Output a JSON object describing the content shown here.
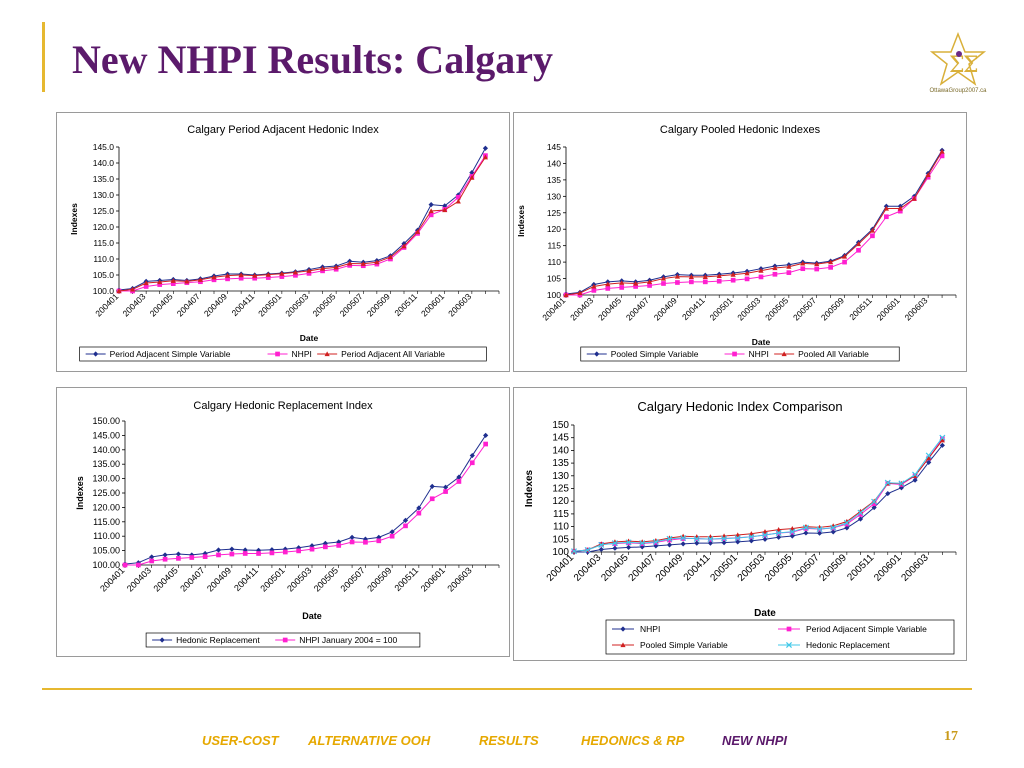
{
  "slide": {
    "title": "New NHPI Results: Calgary",
    "page_number": "17",
    "logo": {
      "text": "OttawaGroup2007.ca",
      "icon": "sigma-star-logo"
    },
    "footer": [
      {
        "label": "USER-COST",
        "color": "#e6a800"
      },
      {
        "label": "ALTERNATIVE OOH",
        "color": "#e6a800"
      },
      {
        "label": "RESULTS",
        "color": "#e6a800"
      },
      {
        "label": "HEDONICS & RP",
        "color": "#e6a800"
      },
      {
        "label": "NEW NHPI",
        "color": "#5b1a6b"
      }
    ]
  },
  "chart_data": [
    {
      "type": "line",
      "title": "Calgary Period Adjacent Hedonic Index",
      "xlabel": "Date",
      "ylabel": "Indexes",
      "ylim": [
        100,
        145
      ],
      "yticks": [
        "100.0",
        "105.0",
        "110.0",
        "115.0",
        "120.0",
        "125.0",
        "130.0",
        "135.0",
        "140.0",
        "145.0"
      ],
      "x": [
        "200401",
        "200402",
        "200403",
        "200404",
        "200405",
        "200406",
        "200407",
        "200408",
        "200409",
        "200410",
        "200411",
        "200412",
        "200501",
        "200502",
        "200503",
        "200504",
        "200505",
        "200506",
        "200507",
        "200508",
        "200509",
        "200510",
        "200511",
        "200512",
        "200601",
        "200602",
        "200603",
        "200604",
        "200605"
      ],
      "xtick_labels": [
        "200401",
        "200403",
        "200405",
        "200407",
        "200409",
        "200411",
        "200501",
        "200503",
        "200505",
        "200507",
        "200509",
        "200511",
        "200601",
        "200603"
      ],
      "legend": "bottom",
      "series": [
        {
          "name": "Period Adjacent Simple Variable",
          "color": "#1f2f8f",
          "marker": "diamond",
          "values": [
            100.3,
            100.8,
            103.0,
            103.3,
            103.6,
            103.3,
            103.8,
            104.7,
            105.3,
            105.3,
            105.0,
            105.3,
            105.6,
            106.0,
            106.7,
            107.5,
            107.8,
            109.3,
            109.0,
            109.5,
            111.0,
            114.8,
            119.0,
            127.0,
            126.6,
            130.0,
            137.0,
            144.6,
            null
          ]
        },
        {
          "name": "NHPI",
          "color": "#ff20d0",
          "marker": "square",
          "values": [
            100.0,
            100.0,
            101.4,
            102.0,
            102.3,
            102.6,
            102.9,
            103.5,
            103.8,
            104.0,
            104.0,
            104.2,
            104.5,
            104.9,
            105.5,
            106.3,
            106.8,
            108.0,
            107.9,
            108.4,
            110.0,
            113.6,
            118.0,
            123.8,
            125.5,
            129.3,
            135.8,
            142.3,
            null
          ]
        },
        {
          "name": "Period Adjacent All Variable",
          "color": "#d02020",
          "marker": "triangle",
          "values": [
            100.0,
            100.5,
            102.5,
            102.8,
            103.2,
            103.0,
            103.5,
            104.3,
            104.8,
            105.0,
            104.8,
            105.1,
            105.4,
            105.8,
            106.3,
            107.0,
            107.4,
            108.6,
            108.5,
            109.0,
            110.6,
            114.0,
            118.5,
            125.0,
            125.3,
            128.0,
            135.4,
            141.8,
            null
          ]
        }
      ]
    },
    {
      "type": "line",
      "title": "Calgary Pooled Hedonic Indexes",
      "xlabel": "Date",
      "ylabel": "Indexes",
      "ylim": [
        100,
        145
      ],
      "yticks": [
        "100",
        "105",
        "110",
        "115",
        "120",
        "125",
        "130",
        "135",
        "140",
        "145"
      ],
      "x": [
        "200401",
        "200402",
        "200403",
        "200404",
        "200405",
        "200406",
        "200407",
        "200408",
        "200409",
        "200410",
        "200411",
        "200412",
        "200501",
        "200502",
        "200503",
        "200504",
        "200505",
        "200506",
        "200507",
        "200508",
        "200509",
        "200510",
        "200511",
        "200512",
        "200601",
        "200602",
        "200603",
        "200604",
        "200605"
      ],
      "xtick_labels": [
        "200401",
        "200403",
        "200405",
        "200407",
        "200409",
        "200411",
        "200501",
        "200503",
        "200505",
        "200507",
        "200509",
        "200511",
        "200601",
        "200603"
      ],
      "legend": "bottom",
      "series": [
        {
          "name": "Pooled Simple Variable",
          "color": "#1f2f8f",
          "marker": "diamond",
          "values": [
            100.3,
            100.8,
            103.2,
            104.0,
            104.3,
            104.0,
            104.5,
            105.5,
            106.2,
            106.0,
            106.0,
            106.3,
            106.7,
            107.2,
            108.0,
            108.8,
            109.2,
            110.0,
            109.7,
            110.3,
            112.0,
            116.0,
            120.0,
            127.0,
            127.0,
            130.0,
            137.0,
            144.0,
            null
          ]
        },
        {
          "name": "NHPI",
          "color": "#ff20d0",
          "marker": "square",
          "values": [
            100.0,
            100.0,
            101.4,
            102.0,
            102.3,
            102.6,
            102.9,
            103.5,
            103.8,
            104.0,
            104.0,
            104.2,
            104.5,
            104.9,
            105.5,
            106.3,
            106.8,
            108.0,
            107.9,
            108.4,
            110.0,
            113.6,
            118.0,
            123.8,
            125.5,
            129.3,
            135.8,
            142.3,
            null
          ]
        },
        {
          "name": "Pooled All Variable",
          "color": "#d02020",
          "marker": "triangle",
          "values": [
            100.0,
            100.6,
            102.6,
            103.3,
            103.7,
            103.5,
            104.0,
            105.0,
            105.6,
            105.5,
            105.5,
            105.8,
            106.2,
            106.6,
            107.4,
            108.2,
            108.6,
            109.6,
            109.4,
            110.0,
            111.7,
            115.5,
            119.6,
            126.3,
            126.3,
            129.3,
            136.5,
            143.6,
            null
          ]
        }
      ]
    },
    {
      "type": "line",
      "title": "Calgary Hedonic Replacement Index",
      "xlabel": "Date",
      "ylabel": "Indexes",
      "ylim": [
        100,
        150
      ],
      "yticks": [
        "100.00",
        "105.00",
        "110.00",
        "115.00",
        "120.00",
        "125.00",
        "130.00",
        "135.00",
        "140.00",
        "145.00",
        "150.00"
      ],
      "x": [
        "200401",
        "200402",
        "200403",
        "200404",
        "200405",
        "200406",
        "200407",
        "200408",
        "200409",
        "200410",
        "200411",
        "200412",
        "200501",
        "200502",
        "200503",
        "200504",
        "200505",
        "200506",
        "200507",
        "200508",
        "200509",
        "200510",
        "200511",
        "200512",
        "200601",
        "200602",
        "200603",
        "200604",
        "200605"
      ],
      "xtick_labels": [
        "200401",
        "200403",
        "200405",
        "200407",
        "200409",
        "200411",
        "200501",
        "200503",
        "200505",
        "200507",
        "200509",
        "200511",
        "200601",
        "200603"
      ],
      "legend": "bottom",
      "series": [
        {
          "name": "Hedonic Replacement",
          "color": "#1f2f8f",
          "marker": "diamond",
          "values": [
            100.3,
            100.8,
            102.8,
            103.5,
            103.8,
            103.5,
            104.0,
            105.2,
            105.5,
            105.2,
            105.1,
            105.3,
            105.5,
            106.0,
            106.7,
            107.5,
            108.0,
            109.6,
            109.0,
            109.6,
            111.5,
            115.5,
            119.8,
            127.3,
            127.0,
            130.5,
            138.0,
            145.0,
            null
          ]
        },
        {
          "name": "NHPI January 2004 = 100",
          "color": "#ff20d0",
          "marker": "square",
          "values": [
            100.0,
            100.0,
            101.4,
            102.0,
            102.3,
            102.6,
            102.9,
            103.5,
            103.8,
            104.0,
            104.0,
            104.2,
            104.5,
            104.9,
            105.5,
            106.3,
            106.8,
            108.0,
            107.9,
            108.4,
            110.0,
            113.6,
            118.0,
            123.0,
            125.5,
            129.0,
            135.5,
            142.0,
            null
          ]
        }
      ]
    },
    {
      "type": "line",
      "title": "Calgary Hedonic Index Comparison",
      "xlabel": "Date",
      "ylabel": "Indexes",
      "ylim": [
        100,
        150
      ],
      "yticks": [
        "100",
        "105",
        "110",
        "115",
        "120",
        "125",
        "130",
        "135",
        "140",
        "145",
        "150"
      ],
      "x": [
        "200401",
        "200402",
        "200403",
        "200404",
        "200405",
        "200406",
        "200407",
        "200408",
        "200409",
        "200410",
        "200411",
        "200412",
        "200501",
        "200502",
        "200503",
        "200504",
        "200505",
        "200506",
        "200507",
        "200508",
        "200509",
        "200510",
        "200511",
        "200512",
        "200601",
        "200602",
        "200603",
        "200604",
        "200605"
      ],
      "xtick_labels": [
        "200401",
        "200403",
        "200405",
        "200407",
        "200409",
        "200411",
        "200501",
        "200503",
        "200505",
        "200507",
        "200509",
        "200511",
        "200601",
        "200603"
      ],
      "legend": "bottom-grid",
      "series": [
        {
          "name": "NHPI",
          "color": "#1f2f8f",
          "marker": "diamond",
          "values": [
            100.0,
            100.0,
            101.0,
            101.5,
            101.8,
            102.0,
            102.4,
            102.8,
            103.2,
            103.5,
            103.5,
            103.7,
            104.0,
            104.4,
            105.0,
            105.8,
            106.3,
            107.5,
            107.4,
            107.9,
            109.5,
            113.0,
            117.5,
            123.0,
            125.3,
            128.3,
            135.3,
            142.0,
            null
          ]
        },
        {
          "name": "Period Adjacent Simple Variable",
          "color": "#ff20d0",
          "marker": "square",
          "values": [
            100.3,
            100.8,
            103.0,
            103.3,
            103.6,
            103.3,
            103.8,
            104.7,
            105.3,
            105.3,
            105.0,
            105.3,
            105.6,
            106.0,
            106.7,
            107.5,
            107.8,
            109.3,
            109.0,
            109.5,
            111.0,
            114.8,
            119.0,
            127.0,
            126.6,
            130.0,
            137.0,
            144.6,
            null
          ]
        },
        {
          "name": "Pooled Simple Variable",
          "color": "#d02020",
          "marker": "triangle",
          "values": [
            100.3,
            100.8,
            103.2,
            104.0,
            104.3,
            104.0,
            104.5,
            105.5,
            106.2,
            106.0,
            106.0,
            106.3,
            106.7,
            107.2,
            108.0,
            108.8,
            109.2,
            110.0,
            109.7,
            110.3,
            112.0,
            116.0,
            120.0,
            127.0,
            127.0,
            130.0,
            137.0,
            144.0,
            null
          ]
        },
        {
          "name": "Hedonic Replacement",
          "color": "#40c8e8",
          "marker": "x",
          "values": [
            100.3,
            100.8,
            102.8,
            103.5,
            103.8,
            103.5,
            104.0,
            105.2,
            105.5,
            105.2,
            105.1,
            105.3,
            105.5,
            106.0,
            106.7,
            107.5,
            108.0,
            109.6,
            109.0,
            109.6,
            111.5,
            115.5,
            119.8,
            127.3,
            127.0,
            130.5,
            138.0,
            145.0,
            null
          ]
        }
      ]
    }
  ]
}
